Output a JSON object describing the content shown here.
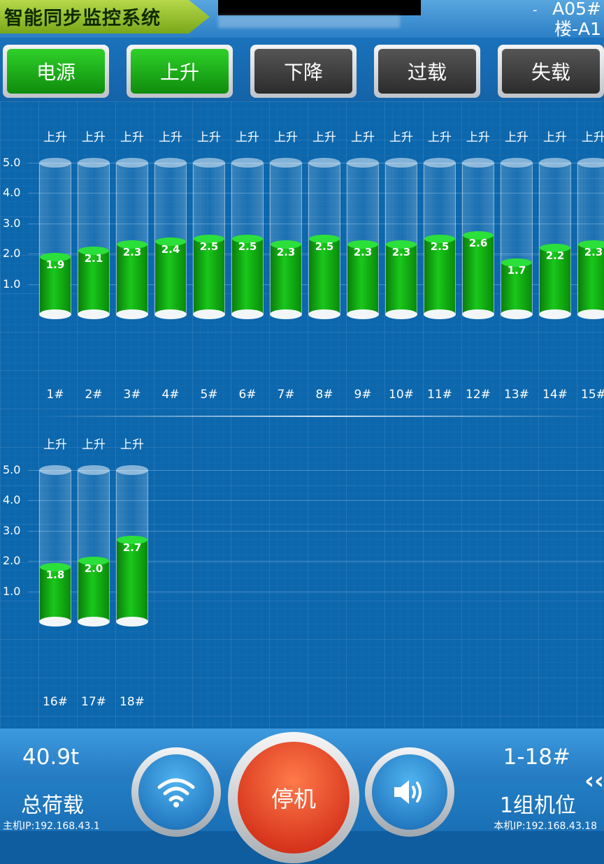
{
  "header": {
    "title": "智能同步监控系统",
    "dash": "-",
    "line1": "A05#",
    "line2": "楼-A1"
  },
  "buttons": [
    {
      "label": "电源",
      "state": "on"
    },
    {
      "label": "上升",
      "state": "on"
    },
    {
      "label": "下降",
      "state": "off"
    },
    {
      "label": "过载",
      "state": "off"
    },
    {
      "label": "失载",
      "state": "off"
    }
  ],
  "colors": {
    "active": "#1fb51c",
    "inactive": "#3a3a3a",
    "stop": "#e2391a"
  },
  "axis_ticks": [
    "5.0",
    "4.0",
    "3.0",
    "2.0",
    "1.0"
  ],
  "axis_max": 5.0,
  "columns_row1": [
    {
      "name": "1#",
      "status": "上升",
      "value": 1.9,
      "value_label": "1.9"
    },
    {
      "name": "2#",
      "status": "上升",
      "value": 2.1,
      "value_label": "2.1"
    },
    {
      "name": "3#",
      "status": "上升",
      "value": 2.3,
      "value_label": "2.3"
    },
    {
      "name": "4#",
      "status": "上升",
      "value": 2.4,
      "value_label": "2.4"
    },
    {
      "name": "5#",
      "status": "上升",
      "value": 2.5,
      "value_label": "2.5"
    },
    {
      "name": "6#",
      "status": "上升",
      "value": 2.5,
      "value_label": "2.5"
    },
    {
      "name": "7#",
      "status": "上升",
      "value": 2.3,
      "value_label": "2.3"
    },
    {
      "name": "8#",
      "status": "上升",
      "value": 2.5,
      "value_label": "2.5"
    },
    {
      "name": "9#",
      "status": "上升",
      "value": 2.3,
      "value_label": "2.3"
    },
    {
      "name": "10#",
      "status": "上升",
      "value": 2.3,
      "value_label": "2.3"
    },
    {
      "name": "11#",
      "status": "上升",
      "value": 2.5,
      "value_label": "2.5"
    },
    {
      "name": "12#",
      "status": "上升",
      "value": 2.6,
      "value_label": "2.6"
    },
    {
      "name": "13#",
      "status": "上升",
      "value": 1.7,
      "value_label": "1.7"
    },
    {
      "name": "14#",
      "status": "上升",
      "value": 2.2,
      "value_label": "2.2"
    },
    {
      "name": "15#",
      "status": "上升",
      "value": 2.3,
      "value_label": "2.3"
    }
  ],
  "columns_row2": [
    {
      "name": "16#",
      "status": "上升",
      "value": 1.8,
      "value_label": "1.8"
    },
    {
      "name": "17#",
      "status": "上升",
      "value": 2.0,
      "value_label": "2.0"
    },
    {
      "name": "18#",
      "status": "上升",
      "value": 2.7,
      "value_label": "2.7"
    }
  ],
  "footer": {
    "total_load_value": "40.9t",
    "total_load_label": "总荷载",
    "host_ip": "主机IP:192.168.43.1",
    "stop_label": "停机",
    "range_value": "1-18#",
    "group_label": "1组机位",
    "local_ip": "本机IP:192.168.43.18",
    "wifi_icon": "wifi-icon",
    "speaker_icon": "speaker-icon",
    "expand_icon": "double-chevron-left-icon",
    "expand_glyph": "‹‹"
  }
}
